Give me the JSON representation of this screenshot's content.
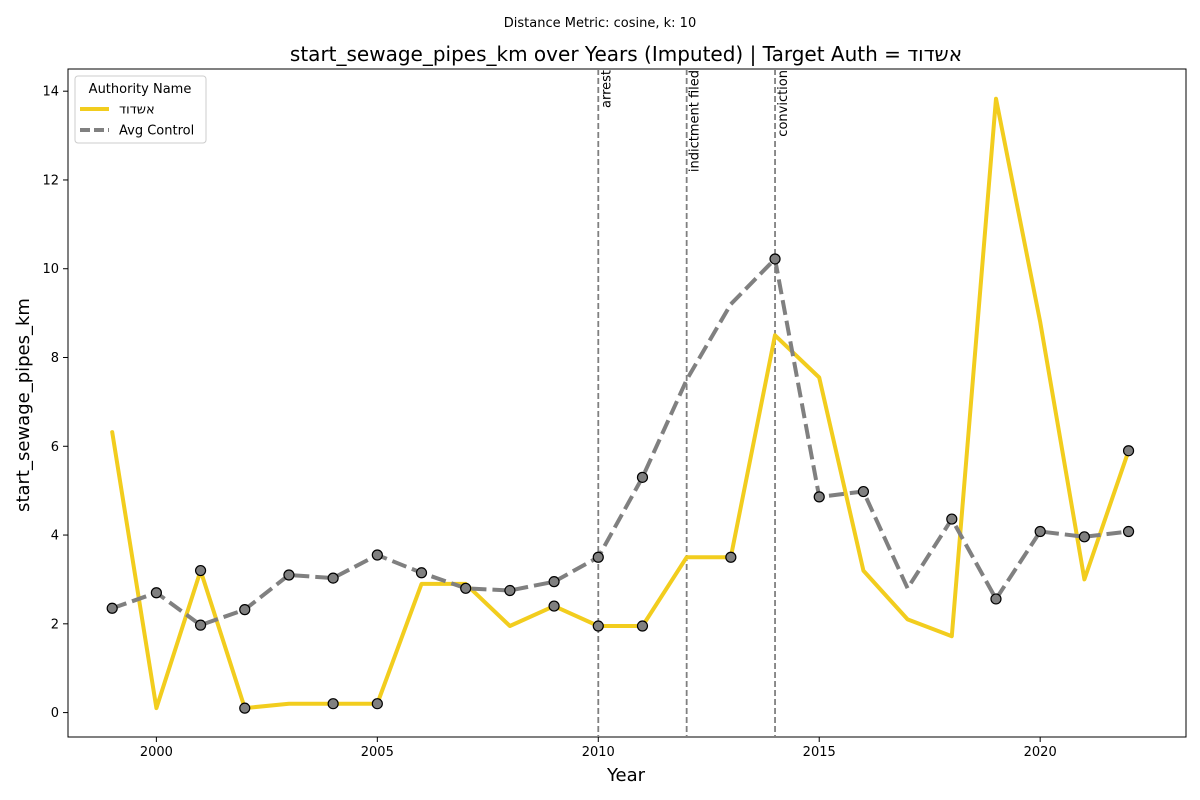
{
  "chart_data": {
    "type": "line",
    "suptitle": "Distance Metric: cosine, k: 10",
    "title": "start_sewage_pipes_km over Years (Imputed) | Target Auth = אשדוד",
    "xlabel": "Year",
    "ylabel": "start_sewage_pipes_km",
    "xlim": [
      1998,
      2023.3
    ],
    "ylim": [
      -0.55,
      14.5
    ],
    "xticks": [
      2000,
      2005,
      2010,
      2015,
      2020
    ],
    "yticks": [
      0,
      2,
      4,
      6,
      8,
      10,
      12,
      14
    ],
    "grid": false,
    "legend": {
      "title": "Authority Name",
      "placement": "top-left"
    },
    "series": [
      {
        "name": "אשדוד",
        "color": "#f2cd1e",
        "style": "solid",
        "x": [
          1999,
          2000,
          2001,
          2002,
          2003,
          2004,
          2005,
          2006,
          2007,
          2008,
          2009,
          2010,
          2011,
          2012,
          2013,
          2014,
          2015,
          2016,
          2017,
          2018,
          2019,
          2020,
          2021,
          2022
        ],
        "y": [
          6.32,
          0.1,
          3.2,
          0.1,
          0.2,
          0.2,
          0.2,
          2.9,
          2.9,
          1.95,
          2.4,
          1.95,
          1.95,
          3.5,
          3.5,
          8.5,
          7.55,
          3.2,
          2.1,
          1.72,
          13.83,
          8.8,
          3.0,
          5.9
        ],
        "markers_at": [
          2001,
          2002,
          2004,
          2005,
          2009,
          2010,
          2011,
          2013,
          2022
        ]
      },
      {
        "name": "Avg Control",
        "color": "#808080",
        "style": "dashed",
        "x": [
          1999,
          2000,
          2001,
          2002,
          2003,
          2004,
          2005,
          2006,
          2007,
          2008,
          2009,
          2010,
          2011,
          2012,
          2013,
          2014,
          2015,
          2016,
          2017,
          2018,
          2019,
          2020,
          2021,
          2022
        ],
        "y": [
          2.35,
          2.7,
          1.97,
          2.32,
          3.1,
          3.03,
          3.55,
          3.15,
          2.8,
          2.75,
          2.95,
          3.5,
          5.3,
          7.5,
          9.2,
          10.22,
          4.86,
          4.98,
          2.8,
          4.36,
          2.56,
          4.08,
          3.96,
          4.08
        ],
        "markers_at": [
          1999,
          2000,
          2001,
          2002,
          2003,
          2004,
          2005,
          2006,
          2007,
          2008,
          2009,
          2010,
          2011,
          2014,
          2015,
          2016,
          2018,
          2019,
          2020,
          2021,
          2022
        ]
      }
    ],
    "event_lines": [
      {
        "x": 2010,
        "label": "arrest"
      },
      {
        "x": 2012,
        "label": "indictment filed"
      },
      {
        "x": 2014,
        "label": "conviction"
      }
    ]
  }
}
